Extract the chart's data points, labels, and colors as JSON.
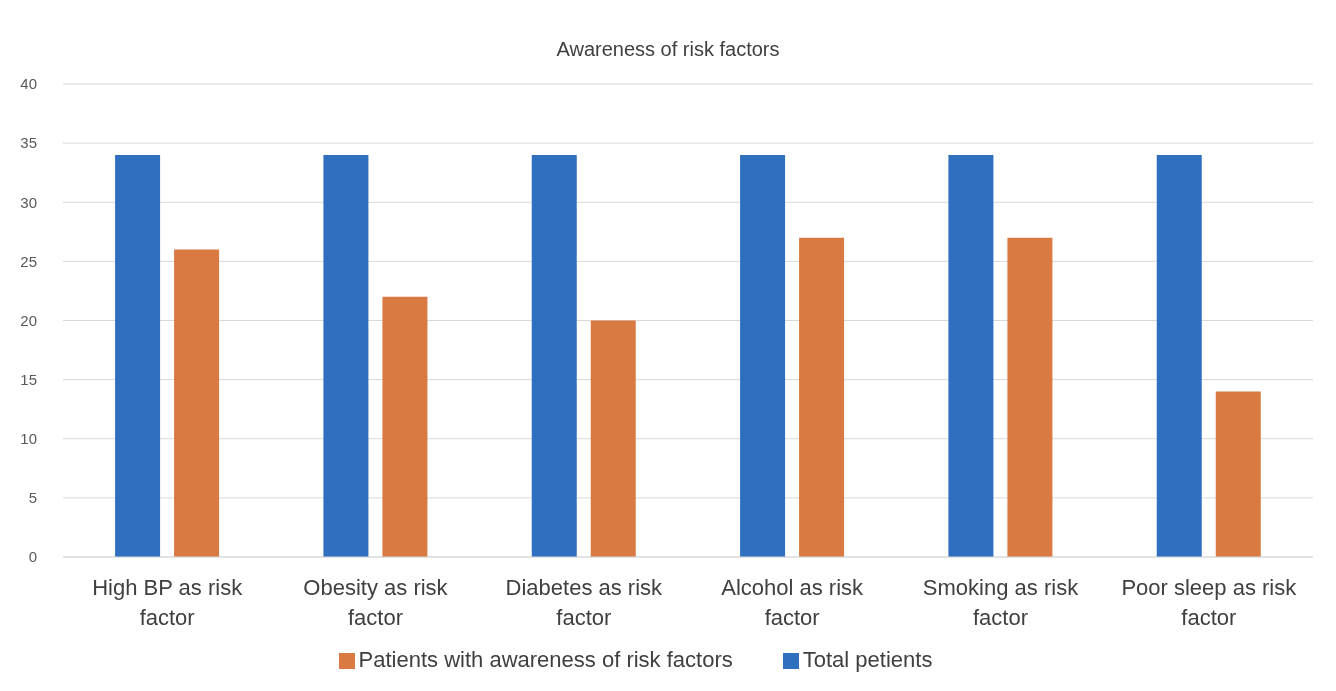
{
  "chart_data": {
    "type": "bar",
    "title": "Awareness of risk factors",
    "categories": [
      "High BP as risk factor",
      "Obesity as risk factor",
      "Diabetes as risk factor",
      "Alcohol as risk factor",
      "Smoking as risk factor",
      "Poor sleep as risk factor"
    ],
    "series": [
      {
        "name": "Total petients",
        "color": "#2e6fbf",
        "values": [
          34,
          34,
          34,
          34,
          34,
          34
        ]
      },
      {
        "name": "Patients with awareness of risk factors",
        "color": "#d97a42",
        "values": [
          26,
          22,
          20,
          27,
          27,
          14
        ]
      }
    ],
    "ylim": [
      0,
      40
    ],
    "yticks": [
      0,
      5,
      10,
      15,
      20,
      25,
      30,
      35,
      40
    ],
    "grid": "y",
    "legend": "bottom"
  }
}
